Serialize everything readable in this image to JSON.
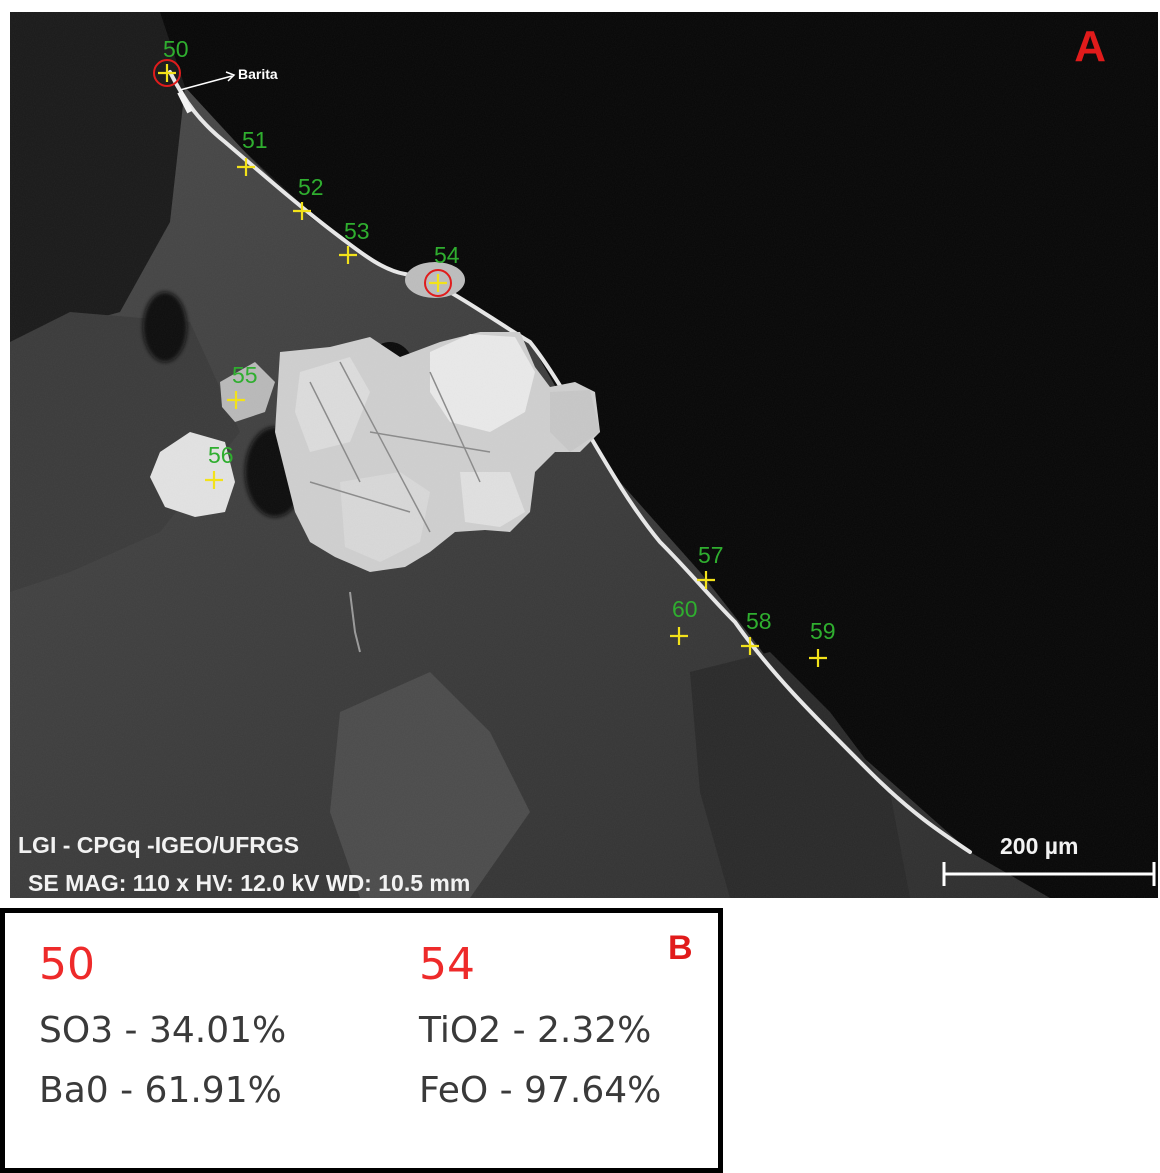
{
  "panel_a": {
    "letter": "A",
    "barita_label": "Barita",
    "lab": "LGI - CPGq -IGEO/UFRGS",
    "params": "SE  MAG: 110 x   HV: 12.0 kV   WD: 10.5 mm",
    "scale_bar": "200 µm",
    "points": [
      {
        "id": "50",
        "circled": true
      },
      {
        "id": "51",
        "circled": false
      },
      {
        "id": "52",
        "circled": false
      },
      {
        "id": "53",
        "circled": false
      },
      {
        "id": "54",
        "circled": true
      },
      {
        "id": "55",
        "circled": false
      },
      {
        "id": "56",
        "circled": false
      },
      {
        "id": "57",
        "circled": false
      },
      {
        "id": "58",
        "circled": false
      },
      {
        "id": "59",
        "circled": false
      },
      {
        "id": "60",
        "circled": false
      }
    ],
    "colors": {
      "label": "#2fae2f",
      "marker": "#f2e21a",
      "circle": "#e01c1c",
      "letter": "#e11b1b"
    }
  },
  "panel_b": {
    "letter": "B",
    "columns": [
      {
        "point": "50",
        "rows": [
          "SO3 - 34.01%",
          "Ba0 - 61.91%"
        ]
      },
      {
        "point": "54",
        "rows": [
          "TiO2 - 2.32%",
          "FeO - 97.64%"
        ]
      }
    ]
  }
}
